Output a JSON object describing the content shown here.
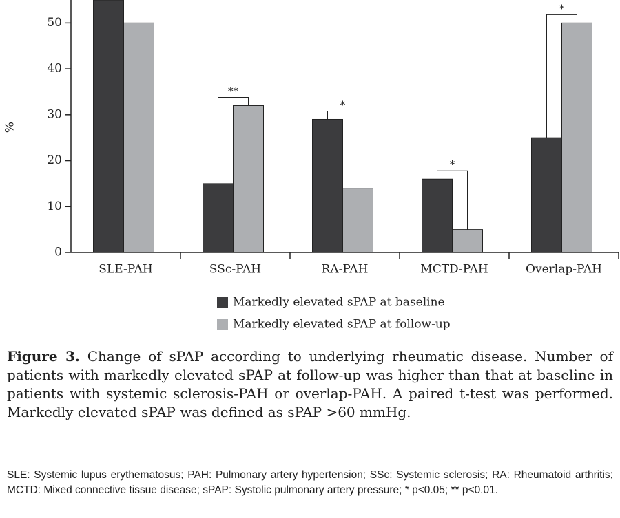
{
  "chart_data": {
    "type": "bar",
    "y_label": "%",
    "categories": [
      "SLE-PAH",
      "SSc-PAH",
      "RA-PAH",
      "MCTD-PAH",
      "Overlap-PAH"
    ],
    "series": [
      {
        "name": "Markedly elevated sPAP at baseline",
        "color": "#3c3c3e",
        "values": [
          55,
          15,
          29,
          16,
          25
        ]
      },
      {
        "name": "Markedly elevated sPAP at follow-up",
        "color": "#adafb2",
        "values": [
          50,
          32,
          14,
          5,
          50
        ]
      }
    ],
    "ylim": [
      0,
      55
    ],
    "yticks": [
      0,
      10,
      20,
      30,
      40,
      50
    ],
    "grid": false,
    "annotations": [
      {
        "category": "SSc-PAH",
        "text": "**"
      },
      {
        "category": "RA-PAH",
        "text": "*"
      },
      {
        "category": "MCTD-PAH",
        "text": "*"
      },
      {
        "category": "Overlap-PAH",
        "text": "*"
      }
    ]
  },
  "caption": {
    "label": "Figure 3.",
    "text": "Change of sPAP according to underlying rheumatic disease. Number of patients with markedly elevated sPAP at follow-up was higher than that at baseline in patients with systemic sclerosis-PAH or overlap-PAH. A paired t-test was performed. Markedly elevated sPAP was defined as sPAP >60 mmHg."
  },
  "footnote": "SLE: Systemic lupus erythematosus; PAH: Pulmonary artery hypertension; SSc: Systemic sclerosis; RA: Rheumatoid arthritis; MCTD: Mixed connective tissue disease; sPAP: Systolic pulmonary artery pressure; * p<0.05; ** p<0.01."
}
